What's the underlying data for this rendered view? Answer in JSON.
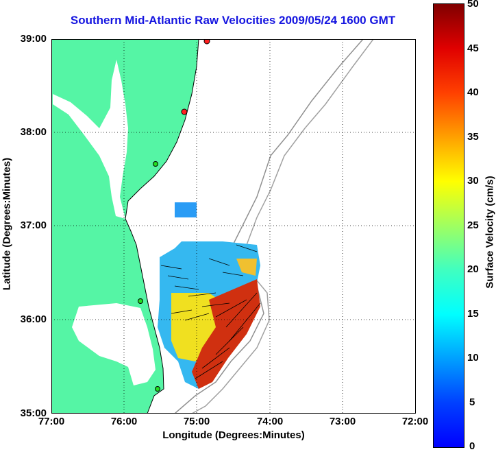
{
  "title": "Southern Mid-Atlantic Raw Velocities 2009/05/24 1600 GMT",
  "x_axis": {
    "label": "Longitude (Degrees:Minutes)",
    "ticks": [
      "77:00",
      "76:00",
      "75:00",
      "74:00",
      "73:00",
      "72:00"
    ]
  },
  "y_axis": {
    "label": "Latitude (Degrees:Minutes)",
    "ticks": [
      "39:00",
      "38:00",
      "37:00",
      "36:00",
      "35:00"
    ]
  },
  "colorbar": {
    "label": "Surface Velocity (cm/s)",
    "ticks": [
      "50",
      "45",
      "40",
      "35",
      "30",
      "25",
      "20",
      "15",
      "10",
      "5",
      "0"
    ],
    "range": [
      0,
      50
    ]
  },
  "colors": {
    "land": "#55f5a5",
    "title": "#1515e0",
    "station_red": "#ff2020",
    "station_green": "#22dd22"
  }
}
